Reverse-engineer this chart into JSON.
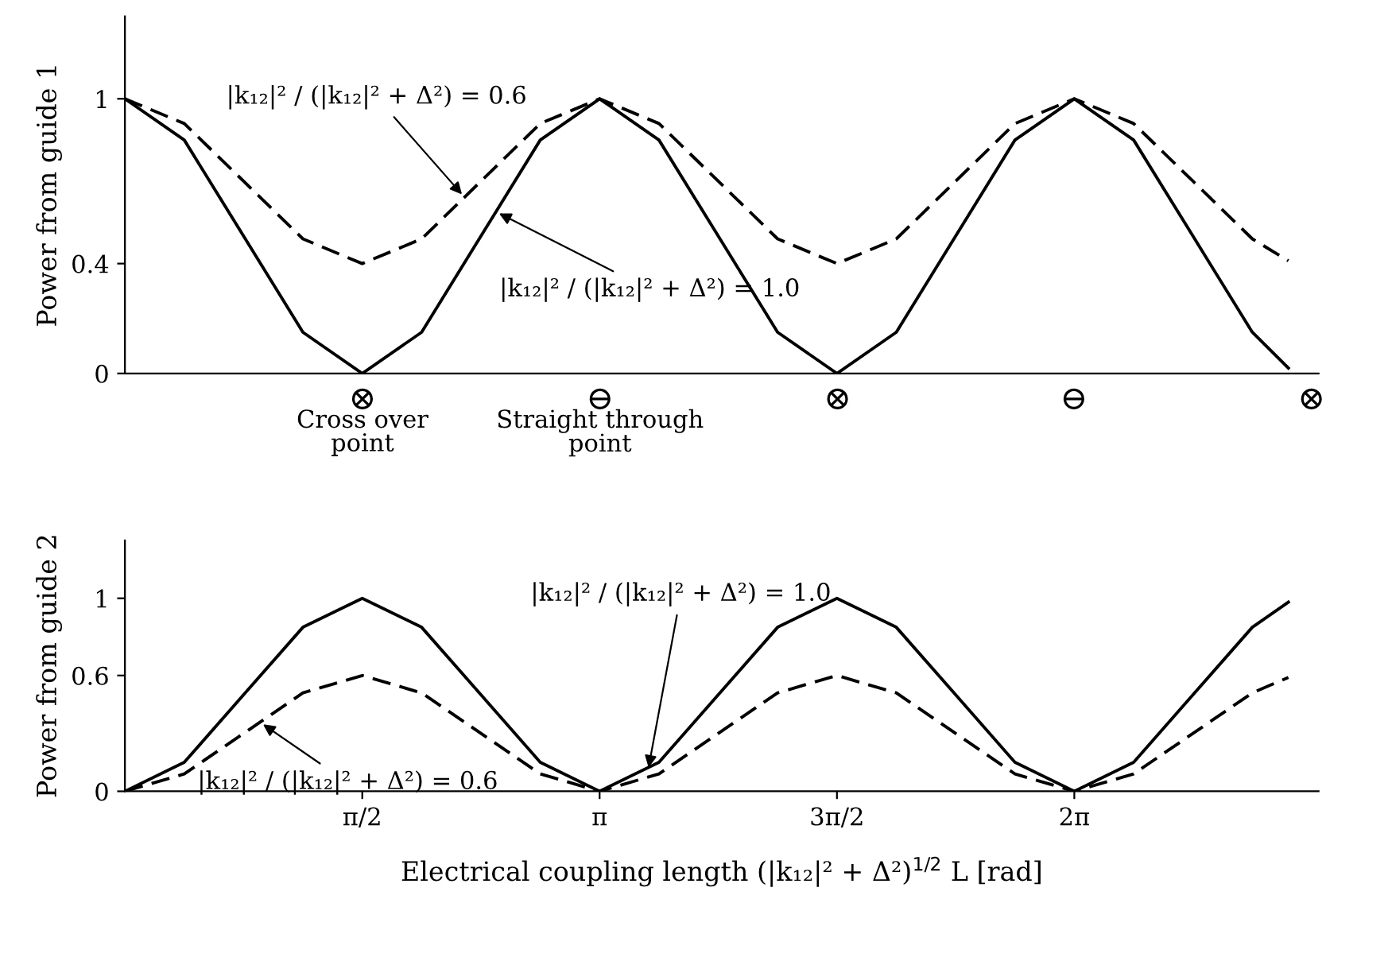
{
  "chart_data": [
    {
      "type": "line",
      "ylabel": "Power from guide 1",
      "x": [
        0,
        0.3927,
        0.7854,
        1.1781,
        1.5708,
        1.9635,
        2.3562,
        2.7489,
        3.1416,
        3.5343,
        3.927,
        4.3197,
        4.7124,
        5.1051,
        5.4978,
        5.8905,
        6.2832,
        6.6759,
        7.0686,
        7.4613,
        7.7
      ],
      "series": [
        {
          "color": "#000000",
          "line_style": "solid",
          "values": [
            1,
            0.85,
            0.5,
            0.15,
            0,
            0.15,
            0.5,
            0.85,
            1,
            0.85,
            0.5,
            0.15,
            0,
            0.15,
            0.5,
            0.85,
            1,
            0.85,
            0.5,
            0.15,
            0.02
          ]
        },
        {
          "color": "#000000",
          "line_style": "dashed",
          "values": [
            1,
            0.91,
            0.7,
            0.49,
            0.4,
            0.49,
            0.7,
            0.91,
            1,
            0.91,
            0.7,
            0.49,
            0.4,
            0.49,
            0.7,
            0.91,
            1,
            0.91,
            0.7,
            0.49,
            0.41
          ]
        }
      ],
      "xlim": [
        0,
        7.9
      ],
      "ylim": [
        0,
        1.3
      ],
      "yticks": [
        0,
        0.4,
        1
      ],
      "tick_labels": "y",
      "grid": false,
      "legend": false,
      "annotations": [
        {
          "text": "|k₁₂|² / (|k₁₂|² + Δ²) = 0.6",
          "x": 2.25,
          "y": 0.64
        },
        {
          "text": "|k₁₂|² / (|k₁₂|² + Δ²) = 1.0",
          "x": 2.45,
          "y": 0.59
        },
        "⊗",
        "Cross over\npoint",
        "⊖",
        "Straight through\npoint",
        "⊗",
        "⊖",
        "⊗"
      ]
    },
    {
      "type": "line",
      "ylabel": "Power from guide 2",
      "xlabel": "Electrical coupling length (|k₁₂|² + Δ²)$^{1/2}$ L [rad]",
      "x": [
        0,
        0.3927,
        0.7854,
        1.1781,
        1.5708,
        1.9635,
        2.3562,
        2.7489,
        3.1416,
        3.5343,
        3.927,
        4.3197,
        4.7124,
        5.1051,
        5.4978,
        5.8905,
        6.2832,
        6.6759,
        7.0686,
        7.4613,
        7.7
      ],
      "series": [
        {
          "color": "#000000",
          "line_style": "solid",
          "values": [
            0,
            0.15,
            0.5,
            0.85,
            1,
            0.85,
            0.5,
            0.15,
            0,
            0.15,
            0.5,
            0.85,
            1,
            0.85,
            0.5,
            0.15,
            0,
            0.15,
            0.5,
            0.85,
            0.98
          ]
        },
        {
          "color": "#000000",
          "line_style": "dashed",
          "values": [
            0,
            0.09,
            0.3,
            0.51,
            0.6,
            0.51,
            0.3,
            0.09,
            0,
            0.09,
            0.3,
            0.51,
            0.6,
            0.51,
            0.3,
            0.09,
            0,
            0.09,
            0.3,
            0.51,
            0.59
          ]
        }
      ],
      "xlim": [
        0,
        7.9
      ],
      "ylim": [
        0,
        1.3
      ],
      "yticks": [
        0,
        0.6,
        1
      ],
      "xticks": [
        {
          "value": 1.5708,
          "label": "π/2"
        },
        {
          "value": 3.1416,
          "label": "π"
        },
        {
          "value": 4.7124,
          "label": "3π/2"
        },
        {
          "value": 6.2832,
          "label": "2π"
        }
      ],
      "grid": false,
      "legend": false,
      "annotations": [
        {
          "text": "|k₁₂|² / (|k₁₂|² + Δ²) = 0.6",
          "x": 0.89,
          "y": 0.36
        },
        {
          "text": "|k₁₂|² / (|k₁₂|² + Δ²) = 1.0",
          "x": 3.46,
          "y": 0.1
        }
      ]
    }
  ]
}
